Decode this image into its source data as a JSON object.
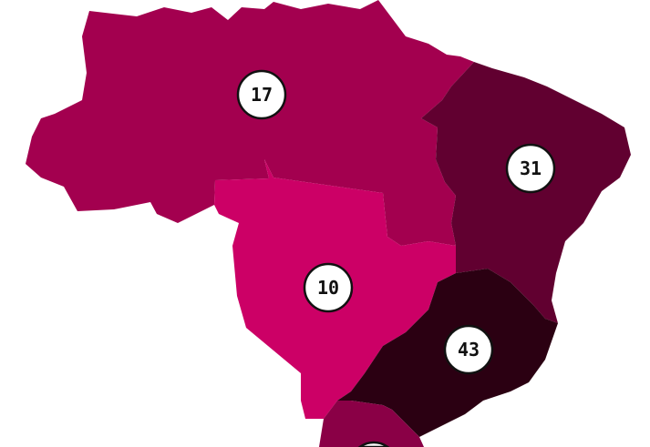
{
  "map": {
    "regions": [
      {
        "id": "north",
        "value": "17",
        "color": "#a3004f"
      },
      {
        "id": "northeast",
        "value": "31",
        "color": "#610030"
      },
      {
        "id": "center-west",
        "value": "10",
        "color": "#cc0066"
      },
      {
        "id": "southeast",
        "value": "43",
        "color": "#2b0012"
      },
      {
        "id": "south",
        "value": "",
        "color": "#8a0046"
      }
    ]
  }
}
